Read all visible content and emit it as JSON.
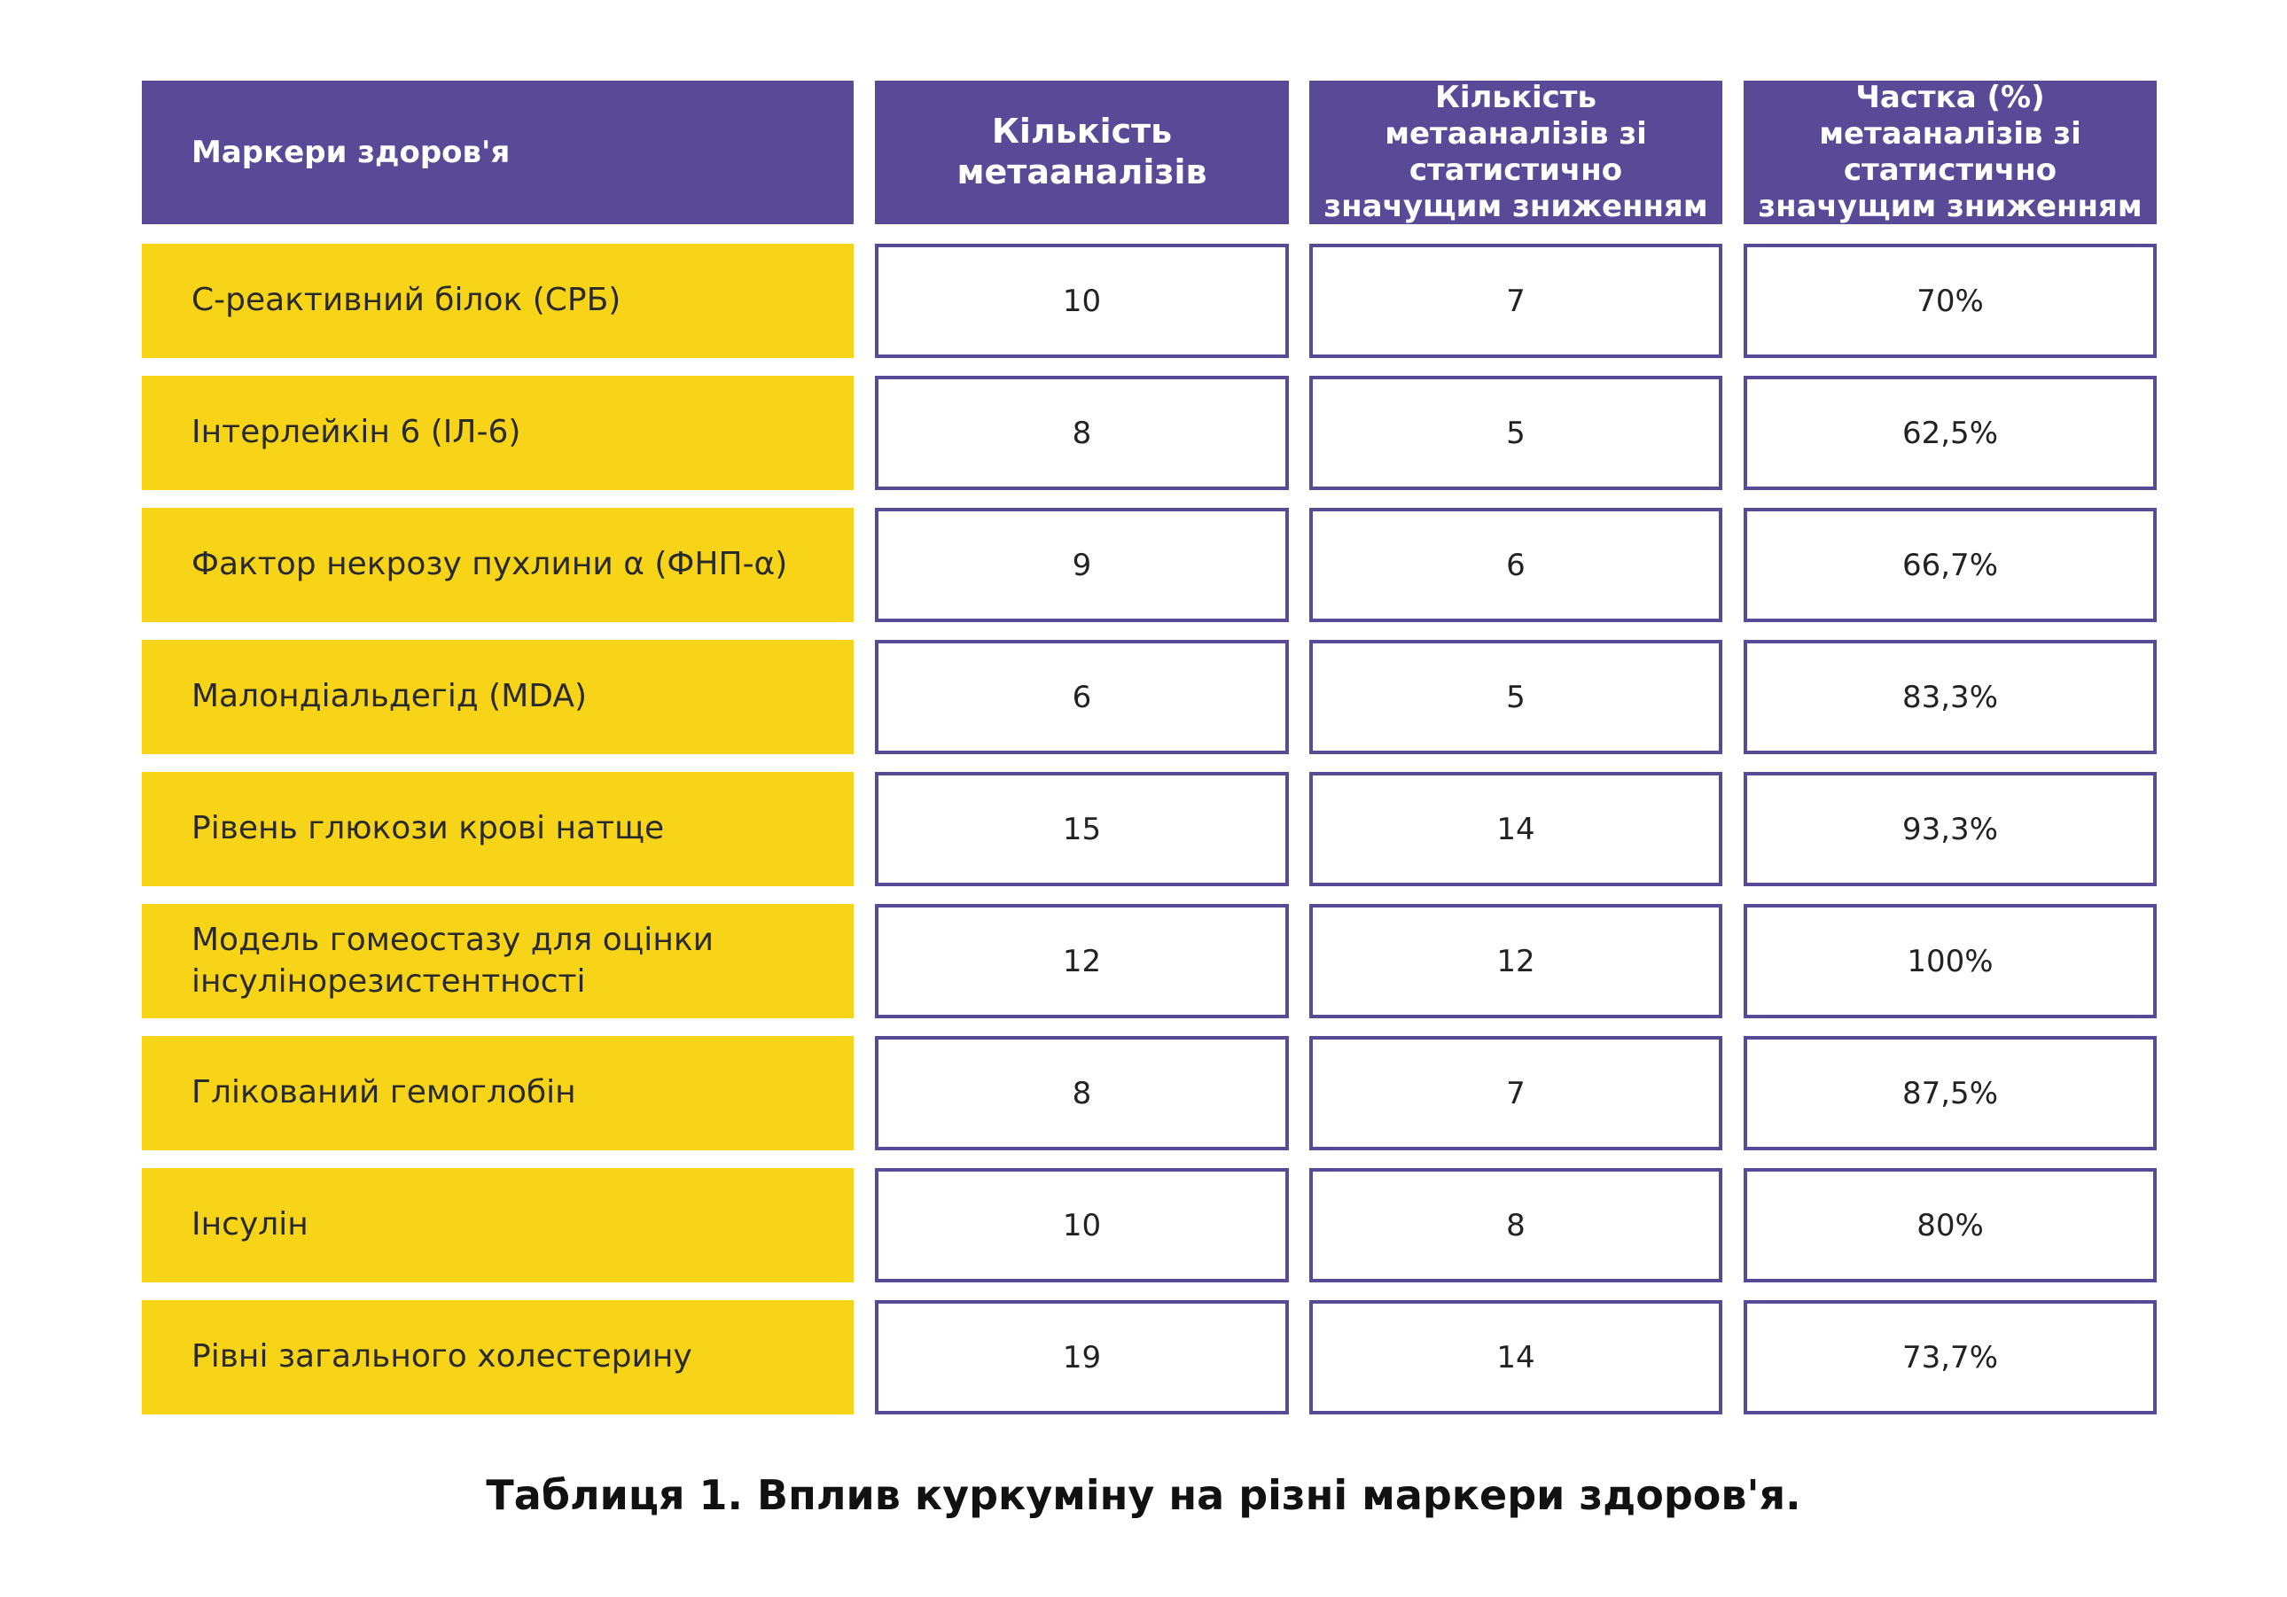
{
  "table": {
    "header": [
      "Маркери здоров'я",
      "Кількість метааналізів",
      "Кількість метааналізів зі статистично значущим зниженням",
      "Частка (%) метааналізів зі статистично значущим зниженням"
    ],
    "rows": [
      [
        "С-реактивний білок (СРБ)",
        10,
        7,
        "70%"
      ],
      [
        "Інтерлейкін 6 (ІЛ-6)",
        8,
        5,
        "62,5%"
      ],
      [
        "Фактор некрозу пухлини α (ФНП-α)",
        9,
        6,
        "66,7%"
      ],
      [
        "Малондіальдегід (MDA)",
        6,
        5,
        "83,3%"
      ],
      [
        "Рівень глюкози крові натще",
        15,
        14,
        "93,3%"
      ],
      [
        "Модель гомеостазу для оцінки інсулінорезистентності",
        12,
        12,
        "100%"
      ],
      [
        "Глікований гемоглобін",
        8,
        7,
        "87,5%"
      ],
      [
        "Інсулін",
        10,
        8,
        "80%"
      ],
      [
        "Рівні загального холестерину",
        19,
        14,
        "73,7%"
      ]
    ]
  },
  "caption": "Таблиця 1. Вплив куркуміну на різні маркери здоров'я."
}
